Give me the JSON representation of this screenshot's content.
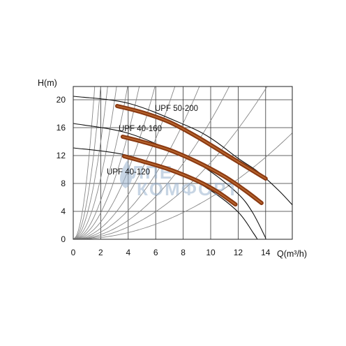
{
  "chart_data": {
    "type": "line",
    "title": "",
    "xlabel": "Q(m³/h)",
    "ylabel": "H(m)",
    "xlim": [
      0,
      16
    ],
    "ylim": [
      0,
      21
    ],
    "x_ticks": [
      "0",
      "2",
      "4",
      "6",
      "8",
      "10",
      "12",
      "14"
    ],
    "y_ticks": [
      "0",
      "4",
      "8",
      "12",
      "16",
      "20"
    ],
    "grid": true,
    "series": [
      {
        "name": "UPF 50-200",
        "color": "#8b3a12",
        "x": [
          3.2,
          5,
          7,
          9,
          11,
          12.5,
          14.0
        ],
        "y": [
          19.1,
          18.2,
          16.8,
          14.7,
          12.3,
          10.5,
          8.7
        ]
      },
      {
        "name": "UPF 40-160",
        "color": "#8b3a12",
        "x": [
          3.6,
          5,
          7,
          9,
          11,
          12.5,
          13.7
        ],
        "y": [
          14.7,
          14.0,
          12.8,
          11.1,
          9.0,
          7.0,
          5.2
        ]
      },
      {
        "name": "UPF 40-120",
        "color": "#8b3a12",
        "x": [
          3.7,
          5,
          7,
          9,
          10.5,
          11.8
        ],
        "y": [
          11.9,
          11.2,
          10.0,
          8.4,
          6.8,
          5.0
        ]
      }
    ],
    "envelope_curves": [
      {
        "x": [
          0,
          4,
          8,
          10,
          12,
          13.5,
          15,
          16
        ],
        "y": [
          20.5,
          19.5,
          16.5,
          14.5,
          11.6,
          9.6,
          6.9,
          4.8
        ]
      },
      {
        "x": [
          0,
          4,
          8,
          10,
          12,
          13,
          13.9,
          14.0
        ],
        "y": [
          16.6,
          15.2,
          11.9,
          9.7,
          6.5,
          4.0,
          0.6,
          0
        ]
      },
      {
        "x": [
          0,
          4,
          8,
          10,
          12,
          13.1,
          13.4
        ],
        "y": [
          13.1,
          12.0,
          9.1,
          7.0,
          3.9,
          0.9,
          0
        ]
      }
    ],
    "system_curves_k": [
      0.06,
      0.11,
      0.17,
      0.26,
      0.4,
      0.62,
      0.95,
      1.4,
      2.2,
      3.5,
      5.5,
      9
    ]
  },
  "watermark": {
    "line1": "ЛПЕ",
    "line2": "КОМФОРТ",
    "color": "#9bb4cf"
  }
}
